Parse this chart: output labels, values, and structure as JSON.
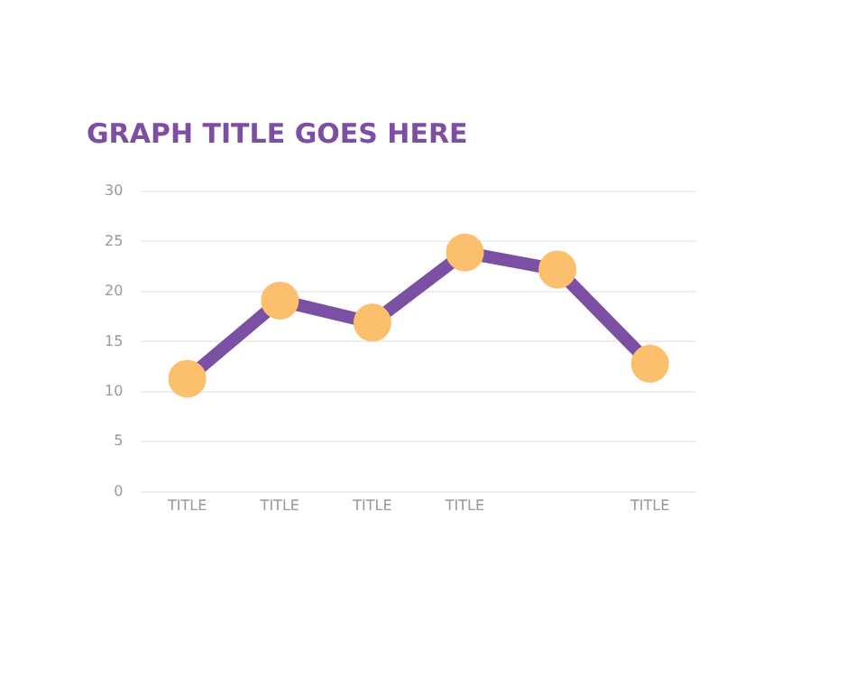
{
  "chart_data": {
    "type": "line",
    "title": "GRAPH TITLE GOES HERE",
    "categories": [
      "TITLE",
      "TITLE",
      "TITLE",
      "TITLE",
      null,
      "TITLE"
    ],
    "series": [
      {
        "color": "#7b4fa3",
        "values": [
          11.3,
          19.1,
          16.9,
          23.9,
          22.2,
          12.8
        ]
      }
    ],
    "ylim": [
      0,
      30
    ],
    "yticks": [
      0,
      5,
      10,
      15,
      20,
      25,
      30
    ],
    "grid": "y",
    "legend": false,
    "marker": "circle",
    "line_style": "solid"
  }
}
